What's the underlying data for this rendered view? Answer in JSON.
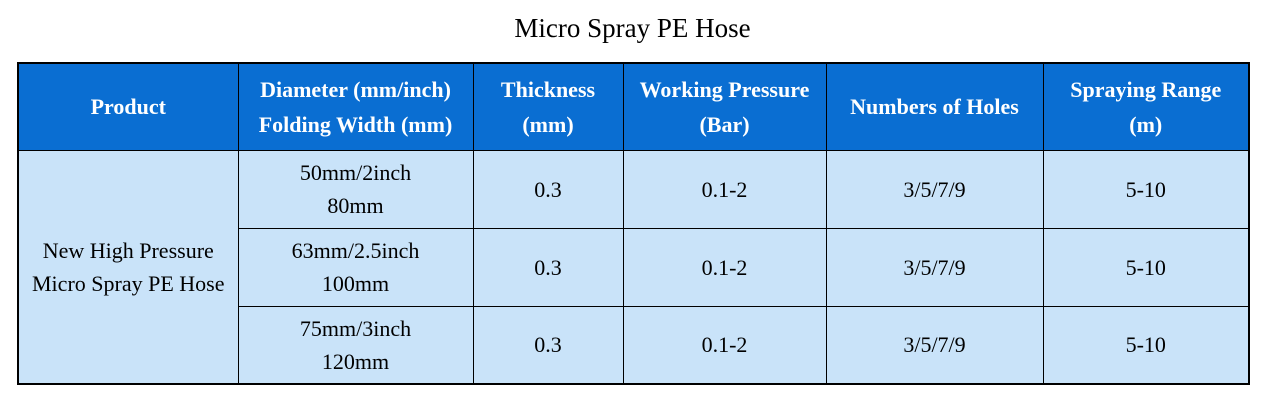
{
  "page_title": "Micro Spray PE Hose",
  "colors": {
    "header_bg": "#0a6ed2",
    "body_bg": "#c9e3f9",
    "border": "#000000",
    "header_text": "#ffffff",
    "body_text": "#000000",
    "title_text": "#000000"
  },
  "table": {
    "headers": [
      {
        "lines": [
          "Product"
        ]
      },
      {
        "lines": [
          "Diameter (mm/inch)",
          "Folding Width (mm)"
        ]
      },
      {
        "lines": [
          "Thickness",
          "(mm)"
        ]
      },
      {
        "lines": [
          "Working Pressure",
          "(Bar)"
        ]
      },
      {
        "lines": [
          "Numbers of Holes"
        ]
      },
      {
        "lines": [
          "Spraying Range",
          "(m)"
        ]
      }
    ],
    "product_cell": {
      "lines": [
        "New High Pressure",
        "Micro Spray PE Hose"
      ],
      "rowspan": 3
    },
    "rows": [
      {
        "diameter": [
          "50mm/2inch",
          "80mm"
        ],
        "thickness": "0.3",
        "working_pressure": "0.1-2",
        "numbers_of_holes": "3/5/7/9",
        "spraying_range": "5-10"
      },
      {
        "diameter": [
          "63mm/2.5inch",
          "100mm"
        ],
        "thickness": "0.3",
        "working_pressure": "0.1-2",
        "numbers_of_holes": "3/5/7/9",
        "spraying_range": "5-10"
      },
      {
        "diameter": [
          "75mm/3inch",
          "120mm"
        ],
        "thickness": "0.3",
        "working_pressure": "0.1-2",
        "numbers_of_holes": "3/5/7/9",
        "spraying_range": "5-10"
      }
    ]
  }
}
